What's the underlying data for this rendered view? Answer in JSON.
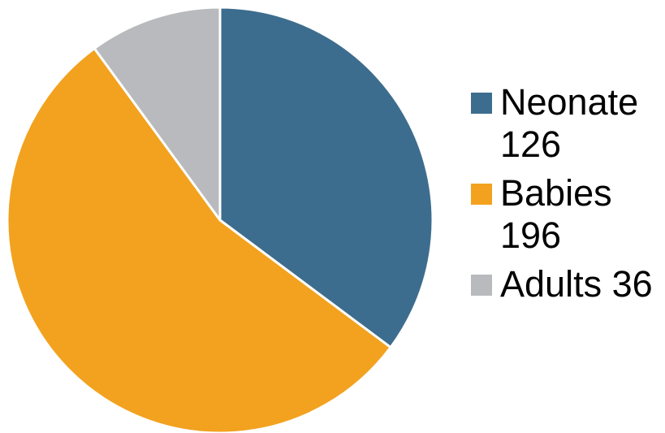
{
  "chart_data": {
    "type": "pie",
    "categories": [
      "Neonate",
      "Babies",
      "Adults"
    ],
    "values": [
      126,
      196,
      36
    ],
    "colors": [
      "#3d6d8e",
      "#f2a21f",
      "#b9babd"
    ],
    "slice_border_color": "#ffffff",
    "start_angle": "12 o'clock",
    "direction": "clockwise",
    "legend_position": "right",
    "legend": [
      {
        "label": "Neonate",
        "value": "126"
      },
      {
        "label": "Babies",
        "value": "196"
      },
      {
        "label": "Adults",
        "value": "36"
      }
    ]
  }
}
